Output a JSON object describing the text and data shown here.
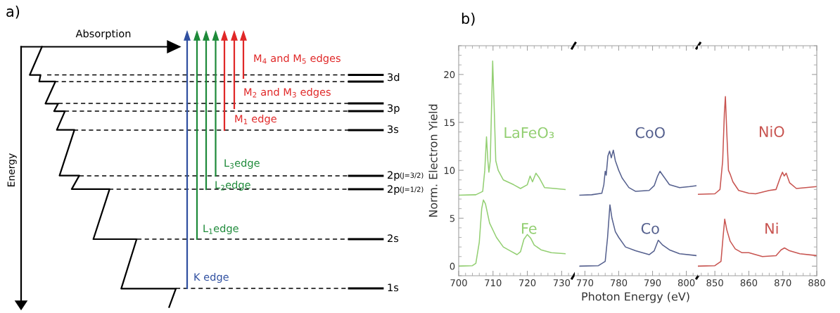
{
  "chart_data": [
    {
      "type": "other",
      "title": "a)",
      "annotations": [
        "Absorption",
        "Energy",
        "M$_{4}$ and M$_{5}$ edges",
        "M$_{2}$ and M$_{3}$ edges",
        "M$_{1}$ edge",
        "L$_{3}$edge",
        "L$_{2}$edge",
        "L$_{1}$edge",
        "K edge",
        "3d",
        "3p",
        "3s",
        "2p",
        "(J=3/2)",
        "2p",
        "(J=1/2)",
        "2s",
        "1s"
      ]
    },
    {
      "type": "line",
      "title": "b)",
      "ylabel": "Norm. Electron Yield",
      "xlim": [
        700,
        733
      ],
      "xticks": [
        700,
        710,
        720,
        730
      ],
      "ylim": [
        -1,
        23
      ],
      "yticks": [
        0,
        5,
        10,
        15,
        20
      ],
      "legend": false,
      "series": [
        {
          "name": "Fe",
          "color": "#93cf72",
          "x": [
            700,
            704,
            705,
            706,
            706.7,
            707.2,
            707.8,
            709,
            711,
            713,
            715,
            717,
            718,
            719,
            720,
            721,
            722,
            724,
            727,
            731
          ],
          "values": [
            0,
            0.05,
            0.3,
            2.5,
            6,
            6.9,
            6.5,
            4.5,
            3,
            2,
            1.6,
            1.2,
            1.5,
            2.8,
            3.3,
            2.9,
            2.2,
            1.7,
            1.4,
            1.3
          ]
        },
        {
          "name": "LaFeO₃",
          "color": "#93cf72",
          "x": [
            700,
            705,
            707,
            707.6,
            708.1,
            708.5,
            708.8,
            709.2,
            709.6,
            709.9,
            710.3,
            710.8,
            711.5,
            713,
            716,
            718,
            720,
            720.8,
            721.5,
            722.5,
            723.5,
            725,
            728,
            731
          ],
          "values": [
            7.4,
            7.45,
            7.8,
            10,
            13.5,
            11,
            9.8,
            11,
            17,
            21.4,
            17,
            11,
            10,
            9,
            8.5,
            8.1,
            8.5,
            9.4,
            8.8,
            9.7,
            9.2,
            8.2,
            8.1,
            8.0
          ]
        }
      ]
    },
    {
      "type": "line",
      "xlabel": "Photon Energy (eV)",
      "xlim": [
        767,
        803
      ],
      "xticks": [
        770,
        780,
        790,
        800
      ],
      "ylim": [
        -1,
        23
      ],
      "tick_labels": "x",
      "legend": false,
      "series": [
        {
          "name": "Co",
          "color": "#55608e",
          "x": [
            768.5,
            774,
            776,
            776.7,
            777.4,
            778,
            779,
            780,
            782,
            785,
            789,
            790.5,
            791.7,
            793,
            795,
            798,
            803
          ],
          "values": [
            0,
            0.05,
            0.5,
            3,
            6.4,
            5,
            3.6,
            3.0,
            2.0,
            1.6,
            1.2,
            1.6,
            2.7,
            2.2,
            1.7,
            1.3,
            1.1
          ]
        },
        {
          "name": "CoO",
          "color": "#55608e",
          "x": [
            768.5,
            772,
            775,
            775.6,
            776,
            776.3,
            776.8,
            777.3,
            777.8,
            778.4,
            779,
            780,
            781,
            783,
            785,
            789,
            790.5,
            791.5,
            792.2,
            793,
            795,
            798,
            801,
            803
          ],
          "values": [
            7.4,
            7.45,
            7.6,
            8.5,
            9.9,
            9.5,
            11.5,
            12.0,
            11.3,
            12.1,
            11,
            10,
            9.2,
            8.2,
            7.8,
            7.9,
            8.4,
            9.4,
            9.9,
            9.5,
            8.5,
            8.2,
            8.3,
            8.4
          ]
        }
      ]
    },
    {
      "type": "line",
      "xlim": [
        845,
        880
      ],
      "xticks": [
        850,
        860,
        870,
        880
      ],
      "ylim": [
        -1,
        23
      ],
      "yticks": [
        {
          "value": 0,
          "label": null
        },
        {
          "value": 5,
          "label": null
        },
        {
          "value": 10,
          "label": null
        },
        {
          "value": 15,
          "label": null
        },
        {
          "value": 20,
          "label": null
        }
      ],
      "tick_labels": "x",
      "legend": false,
      "series": [
        {
          "name": "Ni",
          "color": "#c85450",
          "x": [
            845,
            850,
            851.8,
            852.4,
            852.9,
            853.5,
            854.5,
            856,
            858,
            860,
            864,
            868,
            869.5,
            870.5,
            872,
            875,
            880
          ],
          "values": [
            0,
            0.05,
            0.5,
            3,
            4.9,
            3.8,
            2.6,
            1.8,
            1.4,
            1.4,
            1.0,
            1.1,
            1.7,
            1.9,
            1.6,
            1.3,
            1.1
          ]
        },
        {
          "name": "NiO",
          "color": "#c85450",
          "x": [
            845,
            850,
            851.5,
            852.3,
            852.8,
            853.1,
            853.5,
            854,
            854.5,
            855.3,
            857,
            860,
            862,
            866,
            868,
            869.3,
            869.9,
            870.4,
            871,
            872,
            874,
            880
          ],
          "values": [
            7.5,
            7.55,
            8,
            11,
            16,
            17.7,
            14,
            10,
            9.6,
            8.8,
            7.9,
            7.6,
            7.55,
            7.9,
            8.0,
            9.3,
            9.8,
            9.4,
            9.7,
            8.7,
            8.1,
            8.3
          ]
        }
      ]
    }
  ]
}
